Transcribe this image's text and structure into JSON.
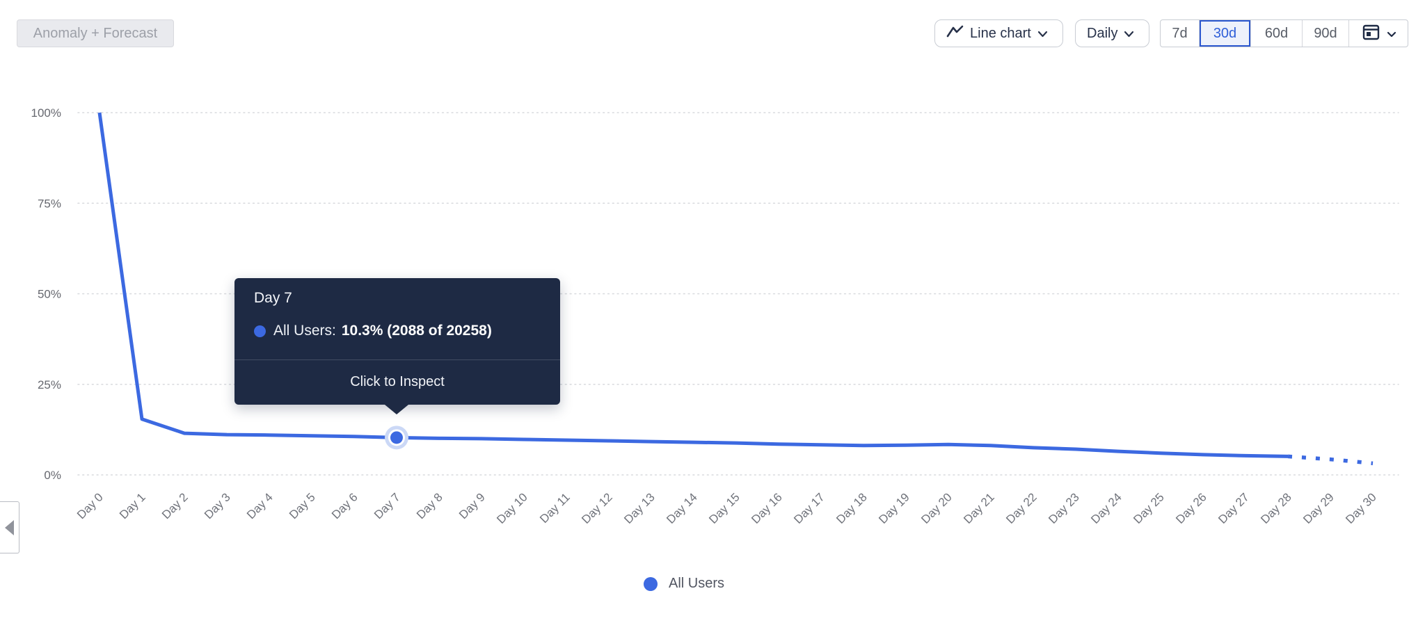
{
  "toolbar": {
    "anomaly_button_label": "Anomaly + Forecast",
    "chart_type_label": "Line chart",
    "granularity_label": "Daily",
    "ranges": [
      "7d",
      "30d",
      "60d",
      "90d"
    ],
    "selected_range": "30d"
  },
  "tooltip": {
    "title": "Day 7",
    "series_label": "All Users:",
    "value_text": "10.3% (2088 of 20258)",
    "footer": "Click to Inspect"
  },
  "legend": {
    "label": "All Users"
  },
  "colors": {
    "series_blue": "#3c69e1",
    "selected_range_blue": "#2e5ed8",
    "tooltip_bg": "#1e2a44",
    "gridline": "#d8dade",
    "axis_label": "#6b6e76"
  },
  "chart_data": {
    "type": "line",
    "title": "",
    "xlabel": "",
    "ylabel": "",
    "categories": [
      "Day 0",
      "Day 1",
      "Day 2",
      "Day 3",
      "Day 4",
      "Day 5",
      "Day 6",
      "Day 7",
      "Day 8",
      "Day 9",
      "Day 10",
      "Day 11",
      "Day 12",
      "Day 13",
      "Day 14",
      "Day 15",
      "Day 16",
      "Day 17",
      "Day 18",
      "Day 19",
      "Day 20",
      "Day 21",
      "Day 22",
      "Day 23",
      "Day 24",
      "Day 25",
      "Day 26",
      "Day 27",
      "Day 28",
      "Day 29",
      "Day 30"
    ],
    "series": [
      {
        "name": "All Users",
        "color": "#3c69e1",
        "values_pct": [
          100,
          15.4,
          11.5,
          11.1,
          11.0,
          10.8,
          10.6,
          10.3,
          10.1,
          10.0,
          9.8,
          9.6,
          9.4,
          9.2,
          9.0,
          8.8,
          8.5,
          8.3,
          8.1,
          8.2,
          8.4,
          8.1,
          7.5,
          7.1,
          6.5,
          6.0,
          5.6,
          5.3,
          5.1,
          4.3,
          3.2
        ]
      }
    ],
    "forecast_start_index": 28,
    "highlighted_point": {
      "index": 7,
      "category": "Day 7",
      "value_pct": 10.3,
      "count": 2088,
      "total": 20258
    },
    "y_ticks": [
      {
        "pct": 0,
        "label": "0%"
      },
      {
        "pct": 25,
        "label": "25%"
      },
      {
        "pct": 50,
        "label": "50%"
      },
      {
        "pct": 75,
        "label": "75%"
      },
      {
        "pct": 100,
        "label": "100%"
      }
    ],
    "ylim": [
      0,
      100
    ],
    "grid": "horizontal-dotted",
    "legend_entries": [
      "All Users"
    ],
    "legend_position": "bottom"
  }
}
